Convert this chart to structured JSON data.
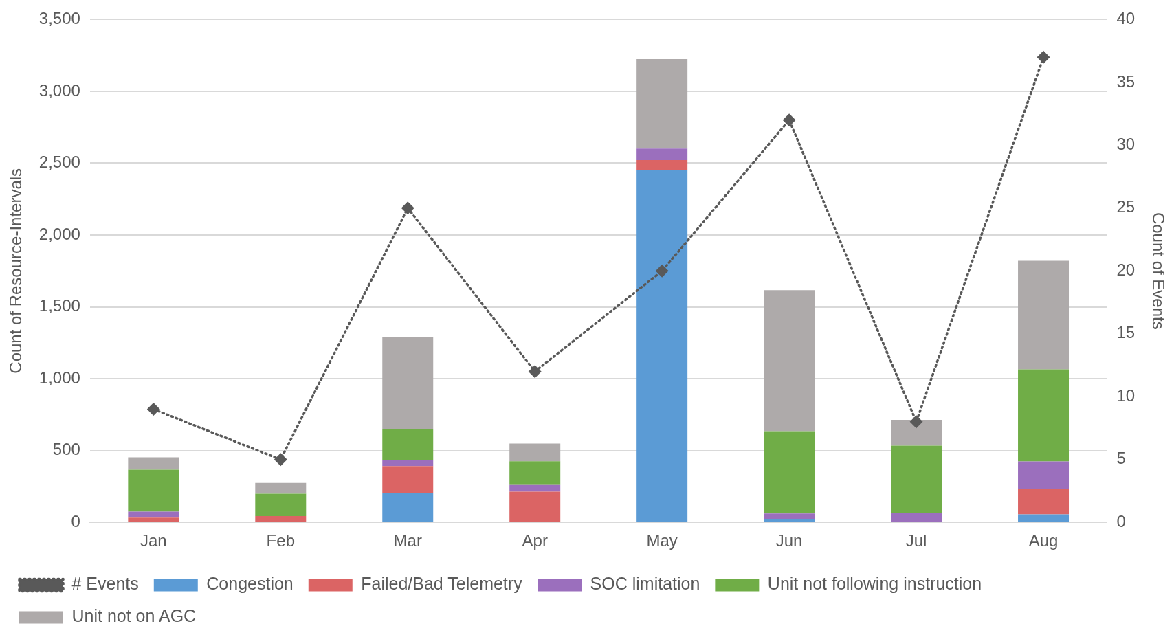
{
  "chart_data": {
    "type": "bar",
    "stacked": true,
    "categories": [
      "Jan",
      "Feb",
      "Mar",
      "Apr",
      "May",
      "Jun",
      "Jul",
      "Aug"
    ],
    "series": [
      {
        "name": "Congestion",
        "color": "#5b9bd5",
        "values": [
          0,
          0,
          206,
          0,
          2455,
          25,
          0,
          56
        ]
      },
      {
        "name": "Failed/Bad Telemetry",
        "color": "#db6464",
        "values": [
          33,
          44,
          186,
          214,
          66,
          0,
          0,
          174
        ]
      },
      {
        "name": "SOC limitation",
        "color": "#9b6fbd",
        "values": [
          42,
          0,
          44,
          47,
          81,
          37,
          67,
          194
        ]
      },
      {
        "name": "Unit not following instruction",
        "color": "#70ad47",
        "values": [
          292,
          156,
          212,
          164,
          0,
          573,
          467,
          641
        ]
      },
      {
        "name": "Unit not on AGC",
        "color": "#aeaaaa",
        "values": [
          86,
          75,
          639,
          123,
          623,
          981,
          180,
          756
        ]
      },
      {
        "name": "# Events",
        "type": "line",
        "axis": "y2",
        "color": "#595959",
        "line_style": "dotted",
        "marker": "diamond",
        "values": [
          9,
          5,
          25,
          12,
          20,
          32,
          8,
          37
        ]
      }
    ],
    "ylabel": "Count of Resource-Intervals",
    "y2label": "Count of Events",
    "ylim": [
      0,
      3500
    ],
    "yticks": [
      {
        "value": 0,
        "label": "0"
      },
      {
        "value": 500,
        "label": "500"
      },
      {
        "value": 1000,
        "label": "1,000"
      },
      {
        "value": 1500,
        "label": "1,500"
      },
      {
        "value": 2000,
        "label": "2,000"
      },
      {
        "value": 2500,
        "label": "2,500"
      },
      {
        "value": 3000,
        "label": "3,000"
      },
      {
        "value": 3500,
        "label": "3,500"
      }
    ],
    "y2lim": [
      0,
      40
    ],
    "y2ticks": [
      0,
      5,
      10,
      15,
      20,
      25,
      30,
      35,
      40
    ],
    "grid": "y",
    "legend": "bottom"
  }
}
